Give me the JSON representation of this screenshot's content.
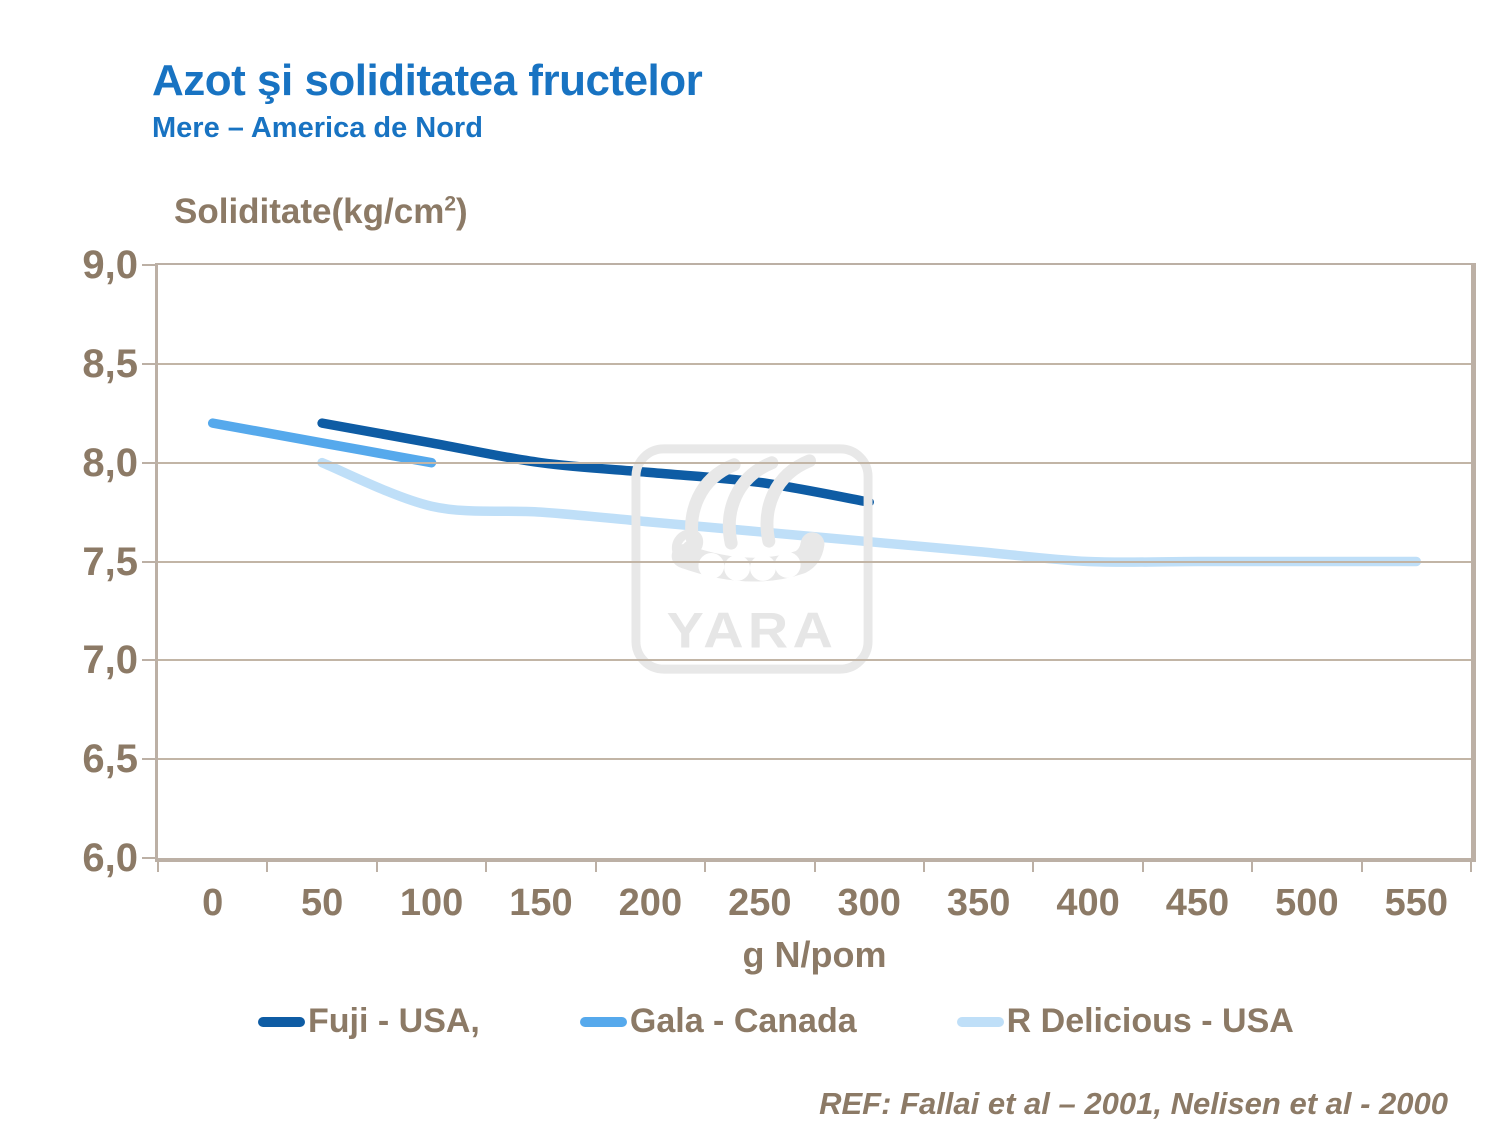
{
  "slide": {
    "title": "Azot şi soliditatea fructelor",
    "subtitle": "Mere – America de Nord",
    "reference": "REF: Fallai et al – 2001, Nelisen et al - 2000"
  },
  "watermark": {
    "text": "YARA",
    "logo": "yara-viking-ship-logo",
    "color": "#E8E8E8"
  },
  "colors": {
    "title_blue": "#1873C2",
    "text_brown": "#8C7A66",
    "gridline": "#C2B5A6",
    "plot_border": "#BCB0A5",
    "background": "#FFFFFF"
  },
  "chart_data": {
    "type": "line",
    "title": "Azot şi soliditatea fructelor",
    "subtitle": "Mere – America de Nord",
    "ylabel_prefix": "Soliditate(kg/cm",
    "ylabel_sup": "2",
    "ylabel_suffix": ")",
    "xlabel": "g N/pom",
    "x_axis_type": "category",
    "x_ticks": [
      0,
      50,
      100,
      150,
      200,
      250,
      300,
      350,
      400,
      450,
      500,
      550
    ],
    "y_ticks": [
      {
        "value": 9.0,
        "label": "9,0"
      },
      {
        "value": 8.5,
        "label": "8,5"
      },
      {
        "value": 8.0,
        "label": "8,0"
      },
      {
        "value": 7.5,
        "label": "7,5"
      },
      {
        "value": 7.0,
        "label": "7,0"
      },
      {
        "value": 6.5,
        "label": "6,5"
      },
      {
        "value": 6.0,
        "label": "6,0"
      }
    ],
    "ylim": [
      6.0,
      9.0
    ],
    "grid": "horizontal",
    "legend_position": "bottom",
    "line_smoothing": true,
    "series": [
      {
        "name": "Fuji - USA,",
        "color": "#0E5CA4",
        "x": [
          50,
          100,
          150,
          200,
          250,
          300
        ],
        "y": [
          8.2,
          8.1,
          8.0,
          7.95,
          7.9,
          7.8
        ]
      },
      {
        "name": "Gala - Canada",
        "color": "#56A9EC",
        "x": [
          0,
          50,
          100
        ],
        "y": [
          8.2,
          8.1,
          8.0
        ]
      },
      {
        "name": "R Delicious - USA",
        "color": "#BFDFF8",
        "x": [
          50,
          100,
          150,
          200,
          250,
          300,
          350,
          400,
          450,
          500,
          550
        ],
        "y": [
          8.0,
          7.78,
          7.75,
          7.7,
          7.65,
          7.6,
          7.55,
          7.5,
          7.5,
          7.5,
          7.5
        ]
      }
    ]
  }
}
